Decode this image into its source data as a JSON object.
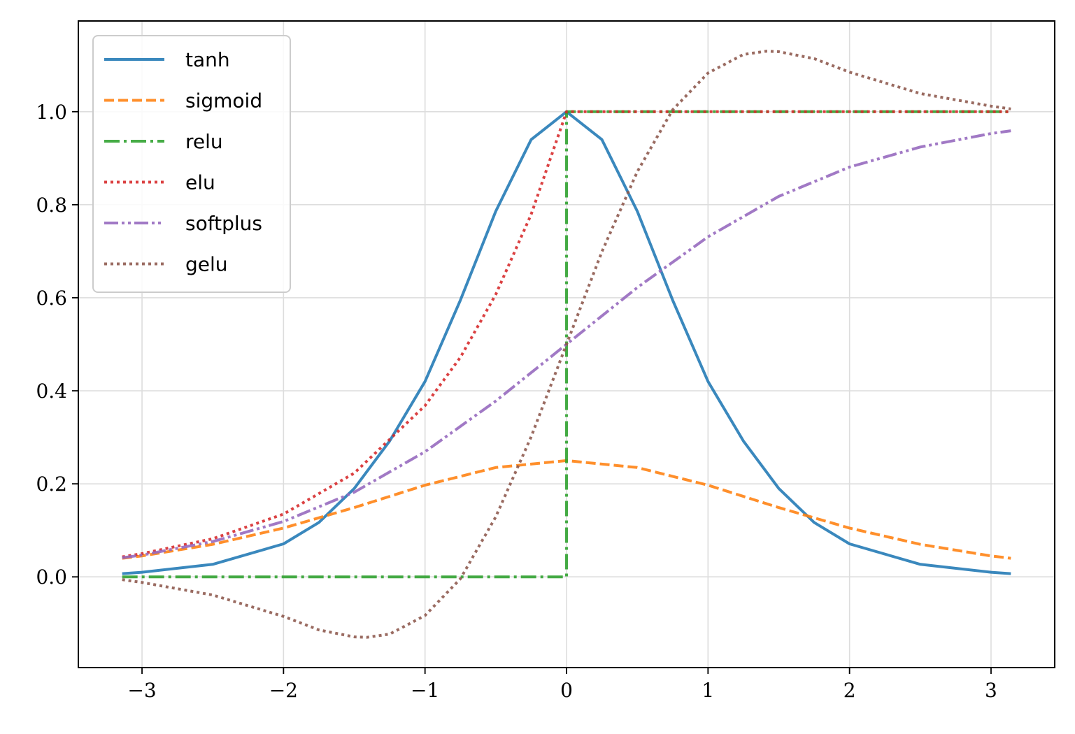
{
  "chart_data": {
    "type": "line",
    "title": "",
    "xlabel": "",
    "ylabel": "",
    "xlim": [
      -3.45,
      3.45
    ],
    "ylim": [
      -0.195,
      1.195
    ],
    "xticks": [
      -3,
      -2,
      -1,
      0,
      1,
      2,
      3
    ],
    "xtick_labels": [
      "−3",
      "−2",
      "−1",
      "0",
      "1",
      "2",
      "3"
    ],
    "yticks": [
      0.0,
      0.2,
      0.4,
      0.6,
      0.8,
      1.0
    ],
    "ytick_labels": [
      "0.0",
      "0.2",
      "0.4",
      "0.6",
      "0.8",
      "1.0"
    ],
    "grid": true,
    "legend_position": "upper-left",
    "x_range": [
      -3.14,
      3.14
    ],
    "series": [
      {
        "name": "tanh",
        "color": "#1f77b4",
        "dash": "solid",
        "x": [
          -3.14,
          -3.0,
          -2.5,
          -2.0,
          -1.75,
          -1.5,
          -1.25,
          -1.0,
          -0.75,
          -0.5,
          -0.25,
          0.0,
          0.25,
          0.5,
          0.75,
          1.0,
          1.25,
          1.5,
          1.75,
          2.0,
          2.5,
          3.0,
          3.14
        ],
        "y": [
          0.007,
          0.01,
          0.027,
          0.071,
          0.117,
          0.19,
          0.292,
          0.42,
          0.595,
          0.786,
          0.94,
          1.0,
          0.94,
          0.786,
          0.595,
          0.42,
          0.292,
          0.19,
          0.117,
          0.071,
          0.027,
          0.01,
          0.007
        ]
      },
      {
        "name": "sigmoid",
        "color": "#ff7f0e",
        "dash": "dashed",
        "x": [
          -3.14,
          -3.0,
          -2.5,
          -2.0,
          -1.5,
          -1.0,
          -0.5,
          0.0,
          0.5,
          1.0,
          1.5,
          2.0,
          2.5,
          3.0,
          3.14
        ],
        "y": [
          0.04,
          0.045,
          0.07,
          0.105,
          0.149,
          0.197,
          0.235,
          0.25,
          0.235,
          0.197,
          0.149,
          0.105,
          0.07,
          0.045,
          0.04
        ]
      },
      {
        "name": "relu",
        "color": "#2ca02c",
        "dash": "dashdot",
        "x": [
          -3.14,
          0.0,
          0.0,
          3.14
        ],
        "y": [
          0.0,
          0.0,
          1.0,
          1.0
        ]
      },
      {
        "name": "elu",
        "color": "#d62728",
        "dash": "dotted",
        "x": [
          -3.14,
          -3.0,
          -2.5,
          -2.0,
          -1.5,
          -1.0,
          -0.75,
          -0.5,
          -0.25,
          0.0,
          3.14
        ],
        "y": [
          0.043,
          0.05,
          0.082,
          0.135,
          0.223,
          0.368,
          0.472,
          0.607,
          0.779,
          1.0,
          1.0
        ]
      },
      {
        "name": "softplus",
        "color": "#9467bd",
        "dash": "dashdotdot",
        "x": [
          -3.14,
          -3.0,
          -2.5,
          -2.0,
          -1.5,
          -1.0,
          -0.5,
          0.0,
          0.5,
          1.0,
          1.5,
          2.0,
          2.5,
          3.0,
          3.14
        ],
        "y": [
          0.041,
          0.047,
          0.076,
          0.119,
          0.182,
          0.269,
          0.378,
          0.5,
          0.622,
          0.731,
          0.818,
          0.881,
          0.924,
          0.953,
          0.959
        ]
      },
      {
        "name": "gelu",
        "color": "#8c564b",
        "dash": "dotted",
        "x": [
          -3.14,
          -3.0,
          -2.5,
          -2.0,
          -1.75,
          -1.5,
          -1.41,
          -1.25,
          -1.0,
          -0.75,
          -0.5,
          -0.25,
          0.0,
          0.25,
          0.5,
          0.75,
          1.0,
          1.25,
          1.41,
          1.5,
          1.75,
          2.0,
          2.5,
          3.0,
          3.14
        ],
        "y": [
          -0.006,
          -0.012,
          -0.039,
          -0.085,
          -0.114,
          -0.129,
          -0.13,
          -0.123,
          -0.083,
          -0.004,
          0.129,
          0.301,
          0.5,
          0.699,
          0.871,
          1.004,
          1.083,
          1.123,
          1.13,
          1.129,
          1.114,
          1.085,
          1.039,
          1.012,
          1.006
        ]
      }
    ]
  }
}
